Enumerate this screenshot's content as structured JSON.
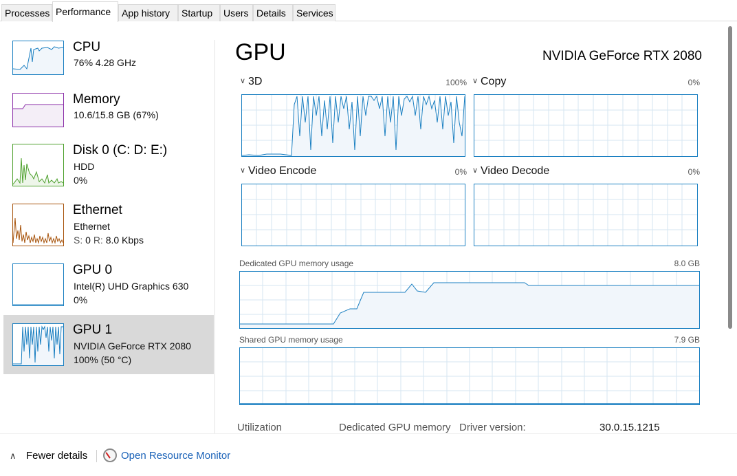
{
  "tabs": [
    {
      "label": "Processes"
    },
    {
      "label": "Performance"
    },
    {
      "label": "App history"
    },
    {
      "label": "Startup"
    },
    {
      "label": "Users"
    },
    {
      "label": "Details"
    },
    {
      "label": "Services"
    }
  ],
  "active_tab": "Performance",
  "sidebar": {
    "items": [
      {
        "title": "CPU",
        "line1": "76%  4.28 GHz",
        "line2": "",
        "color": "#1a7fc1"
      },
      {
        "title": "Memory",
        "line1": "10.6/15.8 GB (67%)",
        "line2": "",
        "color": "#8b2fa8"
      },
      {
        "title": "Disk 0 (C: D: E:)",
        "line1": "HDD",
        "line2": "0%",
        "color": "#4da02c"
      },
      {
        "title": "Ethernet",
        "line1": "Ethernet",
        "line2_s_label": "S:",
        "line2_s": "0",
        "line2_r_label": "R:",
        "line2_r": "8.0 Kbps",
        "color": "#a7530b"
      },
      {
        "title": "GPU 0",
        "line1": "Intel(R) UHD Graphics 630",
        "line2": "0%",
        "color": "#1a7fc1"
      },
      {
        "title": "GPU 1",
        "line1": "NVIDIA GeForce RTX 2080",
        "line2": "100%  (50 °C)",
        "color": "#1a7fc1",
        "selected": true
      }
    ]
  },
  "main": {
    "title": "GPU",
    "device_name": "NVIDIA GeForce RTX 2080",
    "engines": [
      {
        "label": "3D",
        "percent": "100%"
      },
      {
        "label": "Copy",
        "percent": "0%"
      },
      {
        "label": "Video Encode",
        "percent": "0%"
      },
      {
        "label": "Video Decode",
        "percent": "0%"
      }
    ],
    "dedicated_memory": {
      "label": "Dedicated GPU memory usage",
      "max": "8.0 GB"
    },
    "shared_memory": {
      "label": "Shared GPU memory usage",
      "max": "7.9 GB"
    },
    "stats": {
      "utilization_label": "Utilization",
      "dedicated_label": "Dedicated GPU memory",
      "driver_label": "Driver version:",
      "driver_value": "30.0.15.1215"
    }
  },
  "footer": {
    "fewer_details": "Fewer details",
    "open_resmon": "Open Resource Monitor"
  },
  "colors": {
    "accent": "#1a7fc1",
    "graph_fill": "#f1f6fb",
    "grid": "#d6e6f2",
    "link": "#1a62b8"
  }
}
